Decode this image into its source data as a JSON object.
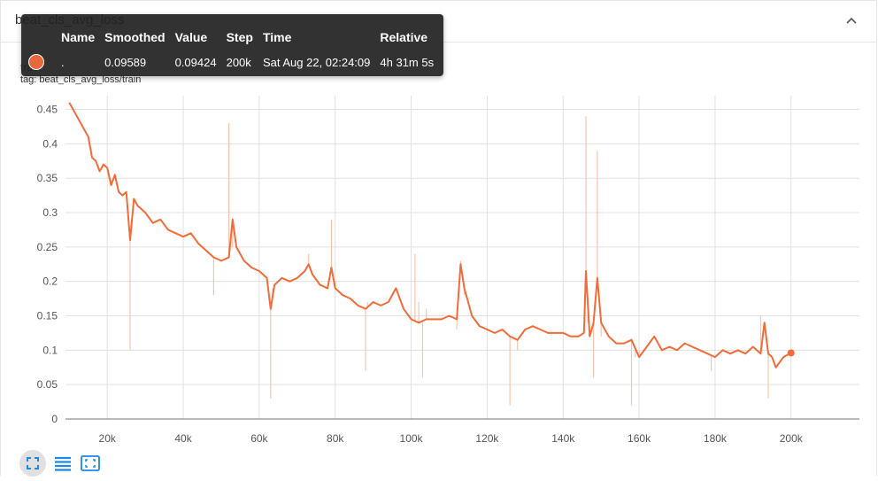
{
  "card": {
    "title": "beat_cls_avg_loss",
    "run_label": "train",
    "tag_label": "tag: beat_cls_avg_loss/train"
  },
  "tooltip": {
    "headers": [
      "Name",
      "Smoothed",
      "Value",
      "Step",
      "Time",
      "Relative"
    ],
    "row": {
      "name": ".",
      "smoothed": "0.09589",
      "value": "0.09424",
      "step": "200k",
      "time": "Sat Aug 22, 02:24:09",
      "relative": "4h 31m 5s"
    }
  },
  "toolbar": {
    "icons": [
      "expand-icon",
      "data-selection-icon",
      "fit-domain-icon"
    ]
  },
  "colors": {
    "smoothed_line": "#f26b38",
    "raw_line": "#f9c4ae",
    "grid": "#e0e0e0",
    "axis": "#757575"
  },
  "chart_data": {
    "type": "line",
    "title": "",
    "xlabel": "",
    "ylabel": "",
    "xlim": [
      9000,
      218000
    ],
    "ylim": [
      0,
      0.47
    ],
    "x_ticks": [
      20000,
      40000,
      60000,
      80000,
      100000,
      120000,
      140000,
      160000,
      180000,
      200000
    ],
    "x_tick_labels": [
      "20k",
      "40k",
      "60k",
      "80k",
      "100k",
      "120k",
      "140k",
      "160k",
      "180k",
      "200k"
    ],
    "y_ticks": [
      0,
      0.05,
      0.1,
      0.15,
      0.2,
      0.25,
      0.3,
      0.35,
      0.4,
      0.45
    ],
    "y_tick_labels": [
      "0",
      "0.05",
      "0.1",
      "0.15",
      "0.2",
      "0.25",
      "0.3",
      "0.35",
      "0.4",
      "0.45"
    ],
    "grid": true,
    "series": [
      {
        "name": ".",
        "role": "smoothed",
        "x": [
          10000,
          12000,
          14000,
          15000,
          16000,
          17000,
          18000,
          19000,
          20000,
          21000,
          22000,
          23000,
          24000,
          25000,
          26000,
          27000,
          28000,
          30000,
          32000,
          34000,
          36000,
          38000,
          40000,
          42000,
          44000,
          46000,
          48000,
          50000,
          52000,
          53000,
          54000,
          56000,
          58000,
          60000,
          62000,
          63000,
          64000,
          66000,
          68000,
          70000,
          72000,
          73000,
          74000,
          76000,
          78000,
          79000,
          80000,
          82000,
          84000,
          86000,
          88000,
          90000,
          92000,
          94000,
          96000,
          98000,
          100000,
          102000,
          104000,
          106000,
          108000,
          110000,
          112000,
          113000,
          114000,
          116000,
          118000,
          120000,
          122000,
          124000,
          126000,
          128000,
          130000,
          132000,
          134000,
          136000,
          138000,
          140000,
          142000,
          144000,
          145500,
          146000,
          147000,
          148000,
          149000,
          150000,
          152000,
          154000,
          156000,
          158000,
          160000,
          162000,
          164000,
          166000,
          168000,
          170000,
          172000,
          174000,
          176000,
          178000,
          180000,
          182000,
          184000,
          186000,
          188000,
          190000,
          192000,
          193000,
          194000,
          195000,
          196000,
          198000,
          200000
        ],
        "y": [
          0.46,
          0.44,
          0.42,
          0.41,
          0.38,
          0.375,
          0.36,
          0.37,
          0.365,
          0.34,
          0.355,
          0.33,
          0.325,
          0.33,
          0.26,
          0.32,
          0.31,
          0.3,
          0.285,
          0.29,
          0.275,
          0.27,
          0.265,
          0.27,
          0.255,
          0.245,
          0.235,
          0.23,
          0.235,
          0.29,
          0.25,
          0.23,
          0.22,
          0.215,
          0.205,
          0.16,
          0.195,
          0.205,
          0.2,
          0.205,
          0.215,
          0.225,
          0.21,
          0.195,
          0.19,
          0.22,
          0.19,
          0.18,
          0.175,
          0.165,
          0.16,
          0.17,
          0.165,
          0.17,
          0.19,
          0.16,
          0.145,
          0.14,
          0.145,
          0.145,
          0.145,
          0.15,
          0.145,
          0.225,
          0.19,
          0.15,
          0.135,
          0.13,
          0.125,
          0.13,
          0.12,
          0.115,
          0.13,
          0.135,
          0.13,
          0.125,
          0.125,
          0.125,
          0.12,
          0.12,
          0.125,
          0.215,
          0.12,
          0.14,
          0.205,
          0.14,
          0.12,
          0.11,
          0.11,
          0.115,
          0.09,
          0.105,
          0.12,
          0.1,
          0.105,
          0.1,
          0.11,
          0.105,
          0.1,
          0.095,
          0.09,
          0.1,
          0.095,
          0.1,
          0.095,
          0.105,
          0.095,
          0.14,
          0.095,
          0.09,
          0.075,
          0.09,
          0.096
        ]
      },
      {
        "name": ".",
        "role": "raw",
        "x": [
          26000,
          26500,
          48000,
          52000,
          53000,
          63000,
          63500,
          73000,
          79000,
          80000,
          88000,
          88500,
          101000,
          102000,
          103000,
          104000,
          112000,
          113000,
          114000,
          126000,
          128000,
          128500,
          146000,
          146500,
          148000,
          149000,
          150000,
          158000,
          159000,
          160000,
          179000,
          192000,
          193000,
          194000
        ],
        "y": [
          0.1,
          0.28,
          0.18,
          0.43,
          0.25,
          0.03,
          0.19,
          0.24,
          0.29,
          0.2,
          0.07,
          0.17,
          0.24,
          0.17,
          0.06,
          0.16,
          0.13,
          0.23,
          0.18,
          0.02,
          0.1,
          0.12,
          0.44,
          0.14,
          0.06,
          0.39,
          0.12,
          0.02,
          0.09,
          0.1,
          0.07,
          0.15,
          0.13,
          0.03
        ]
      }
    ]
  }
}
